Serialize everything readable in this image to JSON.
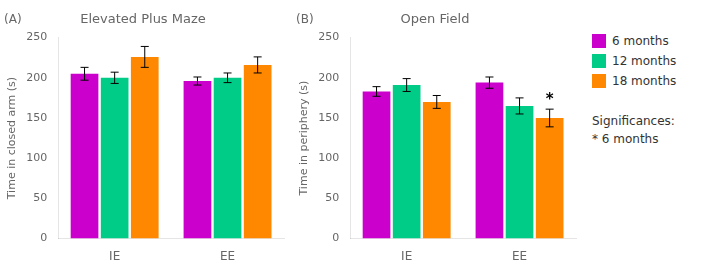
{
  "chart_data": [
    {
      "type": "bar",
      "title": "Elevated Plus Maze",
      "subtitle": "(A)",
      "y_label": "Time in closed arm (s)",
      "categories": [
        "IE",
        "EE"
      ],
      "series": [
        {
          "name": "6 months",
          "color": "#CC00CC",
          "values": [
            205,
            196
          ],
          "errors": [
            8,
            5
          ]
        },
        {
          "name": "12 months",
          "color": "#00CC88",
          "values": [
            200,
            200
          ],
          "errors": [
            7,
            6
          ]
        },
        {
          "name": "18 months",
          "color": "#FF8800",
          "values": [
            226,
            216
          ],
          "errors": [
            13,
            10
          ]
        }
      ],
      "ylim": [
        0,
        250
      ],
      "yticks": [
        0,
        50,
        100,
        150,
        200,
        250
      ],
      "grid": false
    },
    {
      "type": "bar",
      "title": "Open Field",
      "subtitle": "(B)",
      "y_label": "Time in periphery (s)",
      "categories": [
        "IE",
        "EE"
      ],
      "series": [
        {
          "name": "6 months",
          "color": "#CC00CC",
          "values": [
            183,
            194
          ],
          "errors": [
            6,
            7
          ]
        },
        {
          "name": "12 months",
          "color": "#00CC88",
          "values": [
            191,
            165
          ],
          "errors": [
            8,
            10
          ]
        },
        {
          "name": "18 months",
          "color": "#FF8800",
          "values": [
            170,
            150
          ],
          "errors": [
            8,
            11
          ]
        }
      ],
      "ylim": [
        0,
        250
      ],
      "yticks": [
        0,
        50,
        100,
        150,
        200,
        250
      ],
      "grid": false,
      "legend": "right",
      "annotations": [
        {
          "text": "*",
          "category": "EE",
          "series": "18 months"
        },
        {
          "text": "Significances:"
        },
        {
          "text": "* 6 months"
        }
      ]
    }
  ]
}
